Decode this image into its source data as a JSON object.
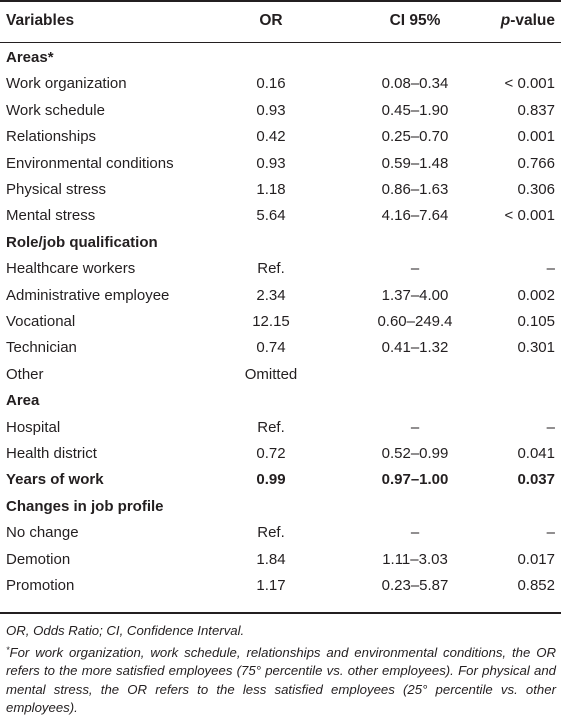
{
  "table": {
    "headers": {
      "variables": "Variables",
      "or": "OR",
      "ci": "CI 95%",
      "p_prefix": "p",
      "p_suffix": "-value"
    },
    "rows": [
      {
        "type": "section",
        "label": "Areas*",
        "or": "",
        "ci": "",
        "p": ""
      },
      {
        "type": "data",
        "label": "Work organization",
        "or": "0.16",
        "ci": "0.08–0.34",
        "p": "< 0.001"
      },
      {
        "type": "data",
        "label": "Work schedule",
        "or": "0.93",
        "ci": "0.45–1.90",
        "p": "0.837"
      },
      {
        "type": "data",
        "label": "Relationships",
        "or": "0.42",
        "ci": "0.25–0.70",
        "p": "0.001"
      },
      {
        "type": "data",
        "label": "Environmental conditions",
        "or": "0.93",
        "ci": "0.59–1.48",
        "p": "0.766"
      },
      {
        "type": "data",
        "label": "Physical stress",
        "or": "1.18",
        "ci": "0.86–1.63",
        "p": "0.306"
      },
      {
        "type": "data",
        "label": "Mental stress",
        "or": "5.64",
        "ci": "4.16–7.64",
        "p": "< 0.001"
      },
      {
        "type": "section",
        "label": "Role/job qualification",
        "or": "",
        "ci": "",
        "p": ""
      },
      {
        "type": "data",
        "label": "Healthcare workers",
        "or": "Ref.",
        "ci": "–",
        "p": "–"
      },
      {
        "type": "data",
        "label": "Administrative employee",
        "or": "2.34",
        "ci": "1.37–4.00",
        "p": "0.002"
      },
      {
        "type": "data",
        "label": "Vocational",
        "or": "12.15",
        "ci": "0.60–249.4",
        "p": "0.105"
      },
      {
        "type": "data",
        "label": "Technician",
        "or": "0.74",
        "ci": "0.41–1.32",
        "p": "0.301"
      },
      {
        "type": "data",
        "label": "Other",
        "or": "Omitted",
        "ci": "",
        "p": ""
      },
      {
        "type": "section",
        "label": "Area",
        "or": "",
        "ci": "",
        "p": ""
      },
      {
        "type": "data",
        "label": "Hospital",
        "or": "Ref.",
        "ci": "–",
        "p": "–"
      },
      {
        "type": "data",
        "label": "Health district",
        "or": "0.72",
        "ci": "0.52–0.99",
        "p": "0.041"
      },
      {
        "type": "section-data",
        "label": "Years of work",
        "or": "0.99",
        "ci": "0.97–1.00",
        "p": "0.037"
      },
      {
        "type": "section",
        "label": "Changes in job profile",
        "or": "",
        "ci": "",
        "p": ""
      },
      {
        "type": "data",
        "label": "No change",
        "or": "Ref.",
        "ci": "–",
        "p": "–"
      },
      {
        "type": "data",
        "label": "Demotion",
        "or": "1.84",
        "ci": "1.11–3.03",
        "p": "0.017"
      },
      {
        "type": "data",
        "label": "Promotion",
        "or": "1.17",
        "ci": "0.23–5.87",
        "p": "0.852"
      }
    ]
  },
  "footnotes": {
    "abbrev": "OR, Odds Ratio; CI, Confidence Interval.",
    "star_mark": "*",
    "star_text": "For work organization, work schedule, relationships and environmental conditions, the OR refers to the more satisfied employees (75° percentile vs. other employees). For physical and mental stress, the OR refers to the less satisfied employees (25° percentile vs. other employees)."
  }
}
